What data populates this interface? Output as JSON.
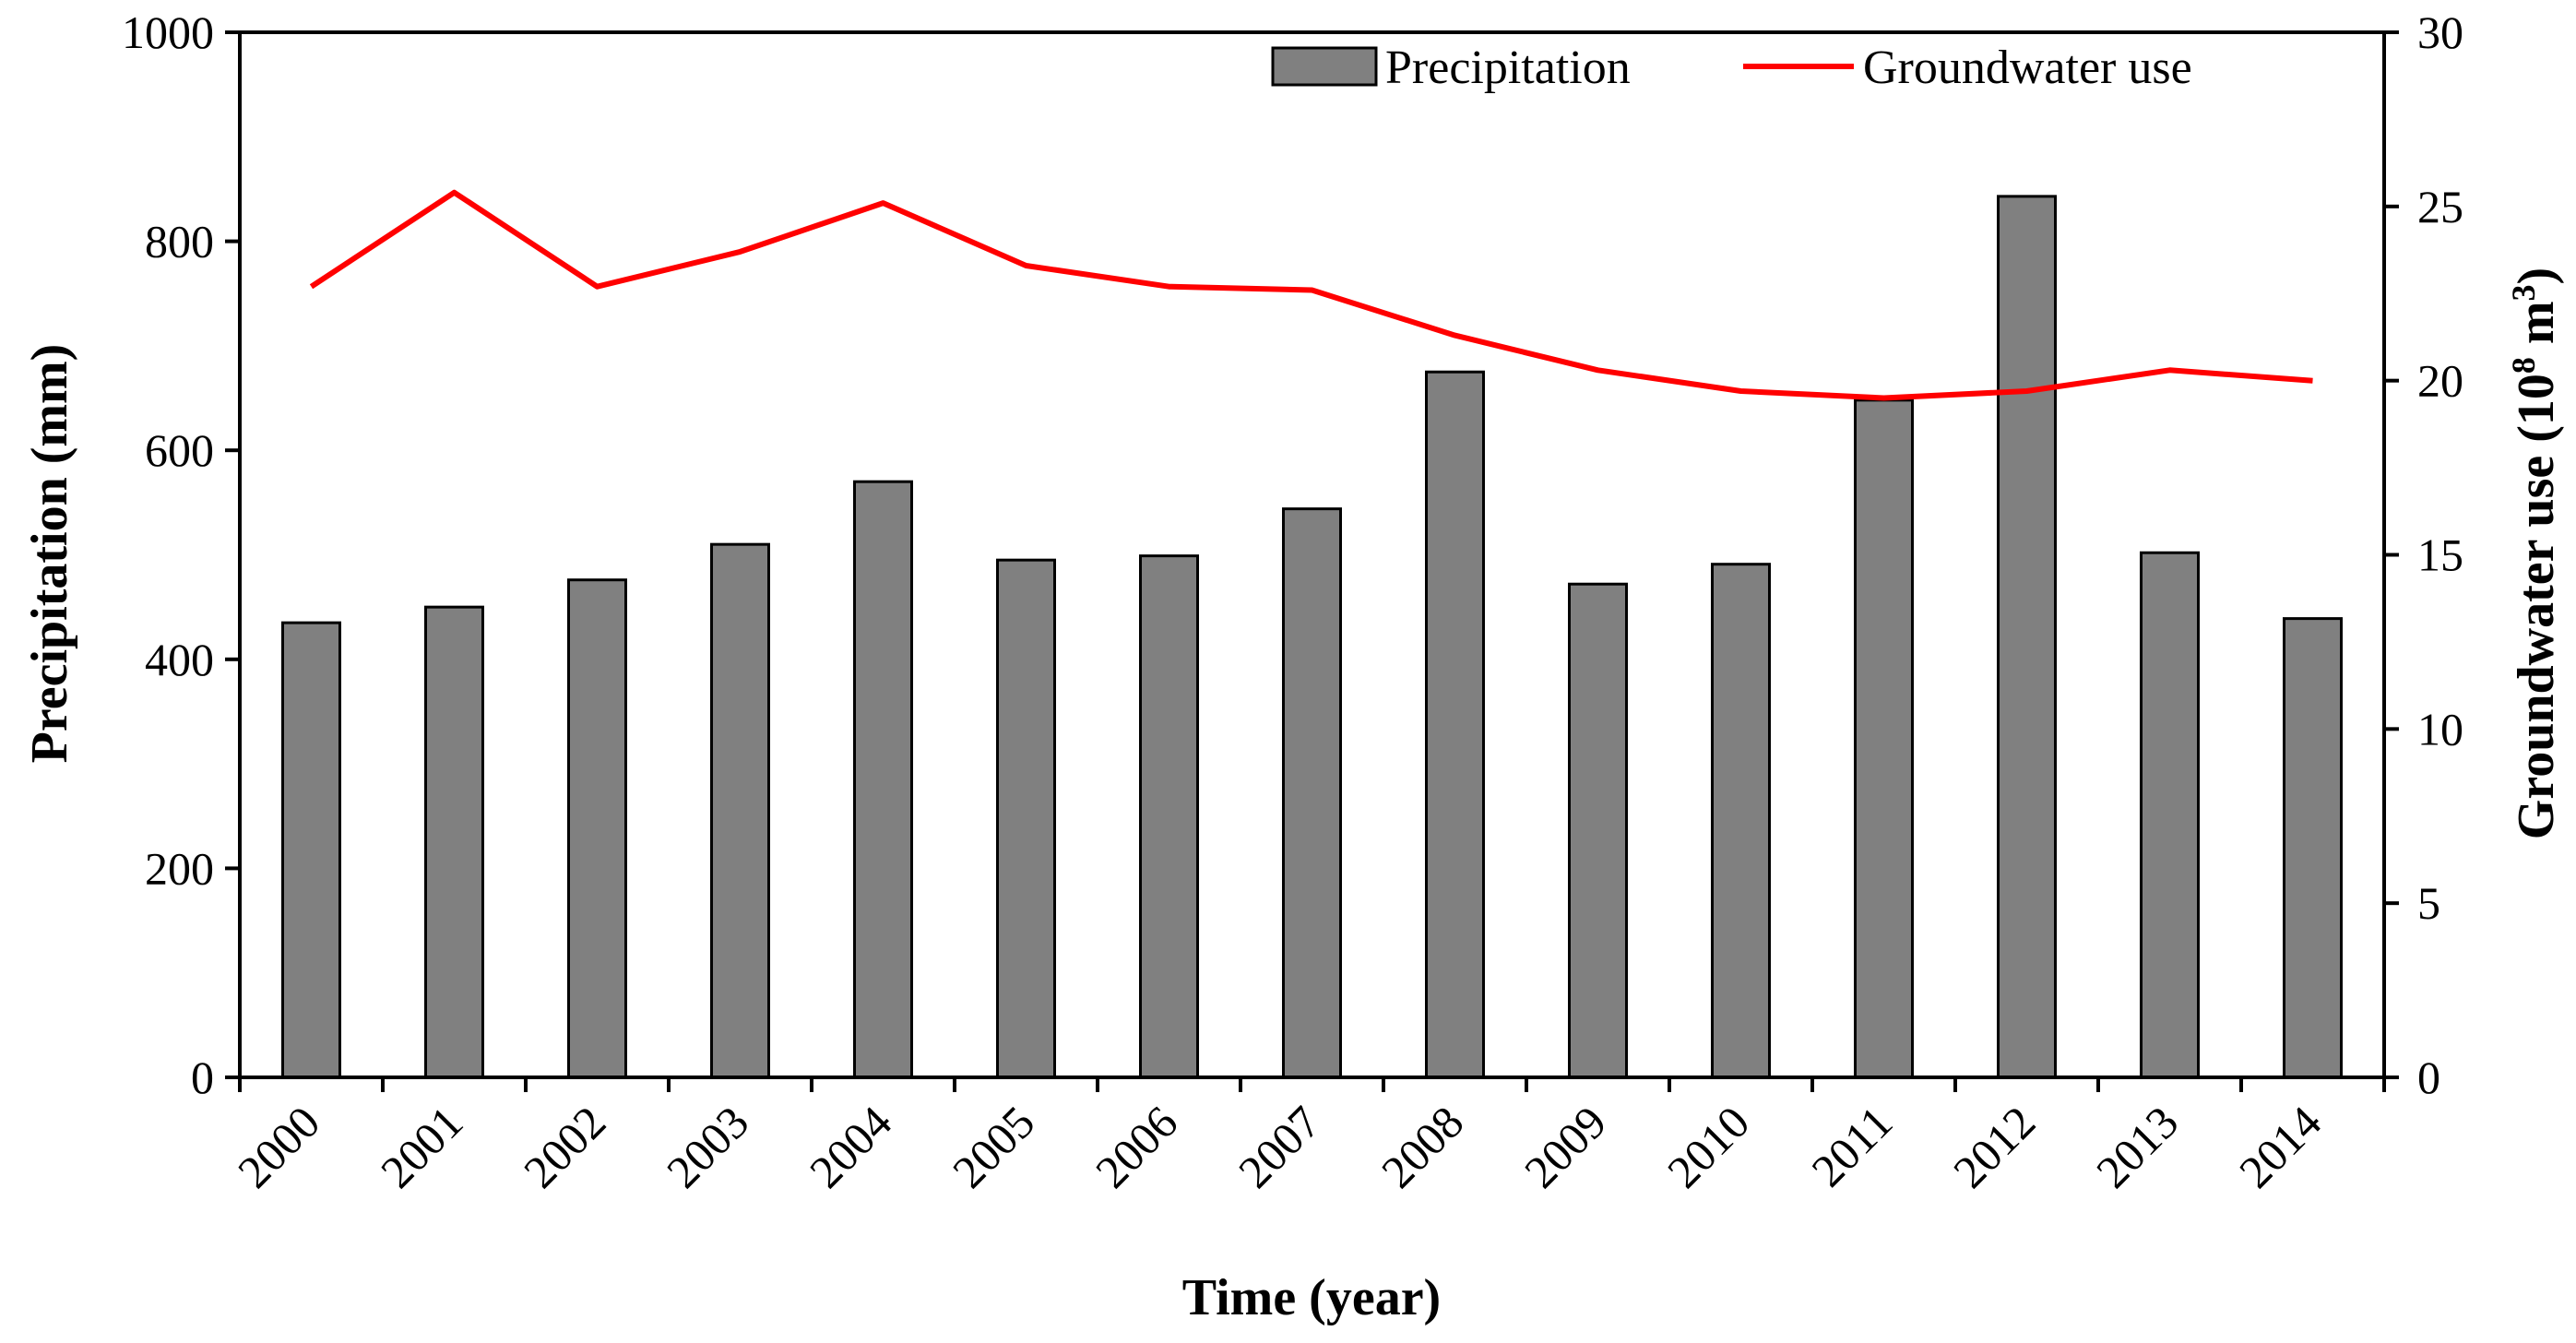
{
  "chart_data": {
    "type": "bar+line",
    "xlabel": "Time (year)",
    "categories": [
      "2000",
      "2001",
      "2002",
      "2003",
      "2004",
      "2005",
      "2006",
      "2007",
      "2008",
      "2009",
      "2010",
      "2011",
      "2012",
      "2013",
      "2014"
    ],
    "series": [
      {
        "name": "Precipitation",
        "type": "bar",
        "axis": "left",
        "color": "#808080",
        "values": [
          435,
          450,
          476,
          510,
          570,
          495,
          499,
          544,
          675,
          472,
          491,
          648,
          843,
          502,
          439
        ]
      },
      {
        "name": "Groundwater use",
        "type": "line",
        "axis": "right",
        "color": "#ff0000",
        "values": [
          22.7,
          25.4,
          22.7,
          23.7,
          25.1,
          23.3,
          22.7,
          22.6,
          21.3,
          20.3,
          19.7,
          19.5,
          19.7,
          20.3,
          20.0
        ]
      }
    ],
    "y_left": {
      "label": "Precipitation  (mm)",
      "lim": [
        0,
        1000
      ],
      "ticks": [
        "0",
        "200",
        "400",
        "600",
        "800",
        "1000"
      ]
    },
    "y_right": {
      "label_main": "Groundwater  use (10",
      "label_sup1": "8",
      "label_mid": " m",
      "label_sup2": "3",
      "label_end": ")",
      "lim": [
        0,
        30
      ],
      "ticks": [
        "0",
        "5",
        "10",
        "15",
        "20",
        "25",
        "30"
      ]
    },
    "legend": {
      "position": "top-right",
      "entries": [
        "Precipitation",
        "Groundwater use"
      ]
    },
    "grid": false
  }
}
